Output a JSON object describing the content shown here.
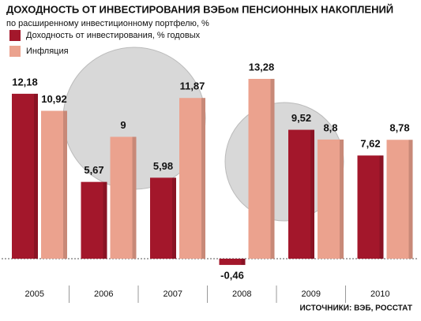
{
  "chart_data": {
    "type": "bar",
    "title": "ДОХОДНОСТЬ ОТ ИНВЕСТИРОВАНИЯ ВЭБом ПЕНСИОННЫХ НАКОПЛЕНИЙ",
    "subtitle": "по расширенному инвестиционному портфелю, %",
    "source": "ИСТОЧНИКИ: ВЭБ, РОССТАТ",
    "categories": [
      "2005",
      "2006",
      "2007",
      "2008",
      "2009",
      "2010"
    ],
    "series": [
      {
        "name": "Доходность от инвестирования, % годовых",
        "color": "#a3172b",
        "values": [
          12.18,
          5.67,
          5.98,
          -0.46,
          9.52,
          7.62
        ],
        "value_labels": [
          "12,18",
          "5,67",
          "5,98",
          "-0,46",
          "9,52",
          "7,62"
        ]
      },
      {
        "name": "Инфляция",
        "color": "#eba28e",
        "values": [
          10.92,
          9,
          11.87,
          13.28,
          8.8,
          8.78
        ],
        "value_labels": [
          "10,92",
          "9",
          "11,87",
          "13,28",
          "8,8",
          "8,78"
        ]
      }
    ]
  }
}
